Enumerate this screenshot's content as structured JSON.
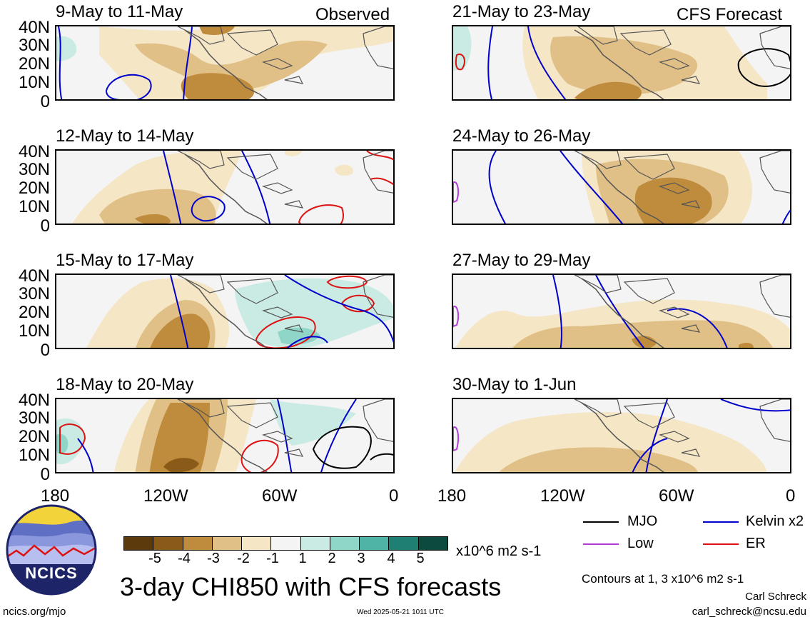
{
  "colors": {
    "neg5": "#5c3a0c",
    "neg4": "#8a5a18",
    "neg3": "#bf8b3c",
    "neg2": "#e0c087",
    "neg1": "#f5e6c6",
    "zero": "#f4f4f4",
    "pos1": "#c9ebe4",
    "pos2": "#8fd6c8",
    "pos3": "#4fb3a5",
    "pos4": "#1f7f73",
    "pos5": "#0b4a3c",
    "mjo": "#000000",
    "kelvin": "#0000cc",
    "low": "#b23ad8",
    "er": "#dd1111"
  },
  "panels": [
    {
      "title": "9-May to 11-May",
      "tag": "Observed"
    },
    {
      "title": "21-May to 23-May",
      "tag": "CFS Forecast"
    },
    {
      "title": "12-May to 14-May",
      "tag": ""
    },
    {
      "title": "24-May to 26-May",
      "tag": ""
    },
    {
      "title": "15-May to 17-May",
      "tag": ""
    },
    {
      "title": "27-May to 29-May",
      "tag": ""
    },
    {
      "title": "18-May to 20-May",
      "tag": ""
    },
    {
      "title": "30-May to 1-Jun",
      "tag": ""
    }
  ],
  "lat_labels": [
    "40N",
    "30N",
    "20N",
    "10N",
    "0"
  ],
  "lon_labels": [
    "180",
    "120W",
    "60W",
    "0"
  ],
  "colorbar": {
    "ticks": [
      "-5",
      "-4",
      "-3",
      "-2",
      "-1",
      "1",
      "2",
      "3",
      "4",
      "5"
    ],
    "unit": "x10^6 m2 s-1"
  },
  "legend": {
    "mjo": "MJO",
    "kelvin": "Kelvin x2",
    "low": "Low",
    "er": "ER",
    "contours_note": "Contours at 1, 3 x10^6 m2 s-1"
  },
  "title": "3-day CHI850 with CFS forecasts",
  "logo_text": "NCICS",
  "footer": {
    "left": "ncics.org/mjo",
    "center": "Wed 2025-05-21 1011 UTC",
    "author": "Carl Schreck",
    "email": "carl_schreck@ncsu.edu"
  }
}
